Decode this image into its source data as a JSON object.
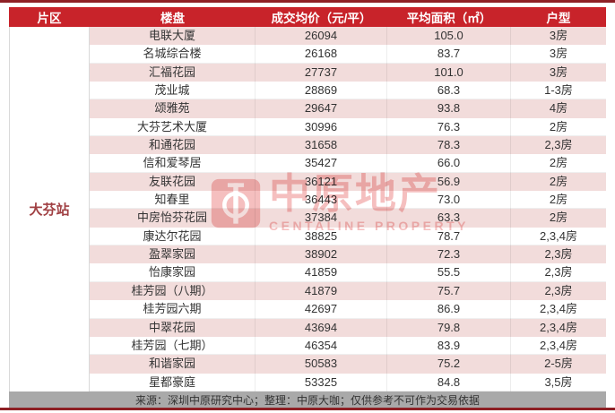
{
  "chart_data": {
    "type": "table",
    "columns": [
      "片区",
      "楼盘",
      "成交均价（元/平）",
      "平均面积（㎡）",
      "户型"
    ],
    "district_label": "大芬站",
    "rows": [
      {
        "name": "电联大厦",
        "price": "26094",
        "area": "105.0",
        "type": "3房"
      },
      {
        "name": "名城综合楼",
        "price": "26168",
        "area": "83.7",
        "type": "3房"
      },
      {
        "name": "汇福花园",
        "price": "27737",
        "area": "101.0",
        "type": "3房"
      },
      {
        "name": "茂业城",
        "price": "28869",
        "area": "68.3",
        "type": "1-3房"
      },
      {
        "name": "颂雅苑",
        "price": "29647",
        "area": "93.8",
        "type": "4房"
      },
      {
        "name": "大芬艺术大厦",
        "price": "30996",
        "area": "76.3",
        "type": "2房"
      },
      {
        "name": "和通花园",
        "price": "31658",
        "area": "78.3",
        "type": "2,3房"
      },
      {
        "name": "信和爱琴居",
        "price": "35427",
        "area": "66.0",
        "type": "2房"
      },
      {
        "name": "友联花园",
        "price": "36121",
        "area": "56.9",
        "type": "2房"
      },
      {
        "name": "知春里",
        "price": "36443",
        "area": "73.0",
        "type": "2房"
      },
      {
        "name": "中房怡芬花园",
        "price": "37384",
        "area": "63.3",
        "type": "2房"
      },
      {
        "name": "康达尔花园",
        "price": "38825",
        "area": "78.7",
        "type": "2,3,4房"
      },
      {
        "name": "盈翠家园",
        "price": "38902",
        "area": "72.3",
        "type": "2,3房"
      },
      {
        "name": "怡康家园",
        "price": "41859",
        "area": "55.5",
        "type": "2,3房"
      },
      {
        "name": "桂芳园（八期）",
        "price": "41879",
        "area": "75.7",
        "type": "2,3房"
      },
      {
        "name": "桂芳园六期",
        "price": "42697",
        "area": "86.9",
        "type": "2,3,4房"
      },
      {
        "name": "中翠花园",
        "price": "43694",
        "area": "79.8",
        "type": "2,3,4房"
      },
      {
        "name": "桂芳园（七期）",
        "price": "46354",
        "area": "83.9",
        "type": "2,3,4房"
      },
      {
        "name": "和谐家园",
        "price": "50583",
        "area": "75.2",
        "type": "2-5房"
      },
      {
        "name": "星都豪庭",
        "price": "53325",
        "area": "84.8",
        "type": "3,5房"
      }
    ]
  },
  "footer": {
    "source_note": "来源：深圳中原研究中心；整理：中原大咖；仅供参考不可作为交易依据"
  },
  "watermark": {
    "title": "中原地产",
    "subtitle": "CENTALINE PROPERTY",
    "logo": "centaline-logo"
  },
  "colors": {
    "header_red": "#C8232A",
    "row_pink": "#F2DCDB",
    "accent_line_dark_red": "#8E2025",
    "district_text_red": "#A04043",
    "watermark_red": "#DD2B2B",
    "footer_gray": "#A9A9A9"
  }
}
